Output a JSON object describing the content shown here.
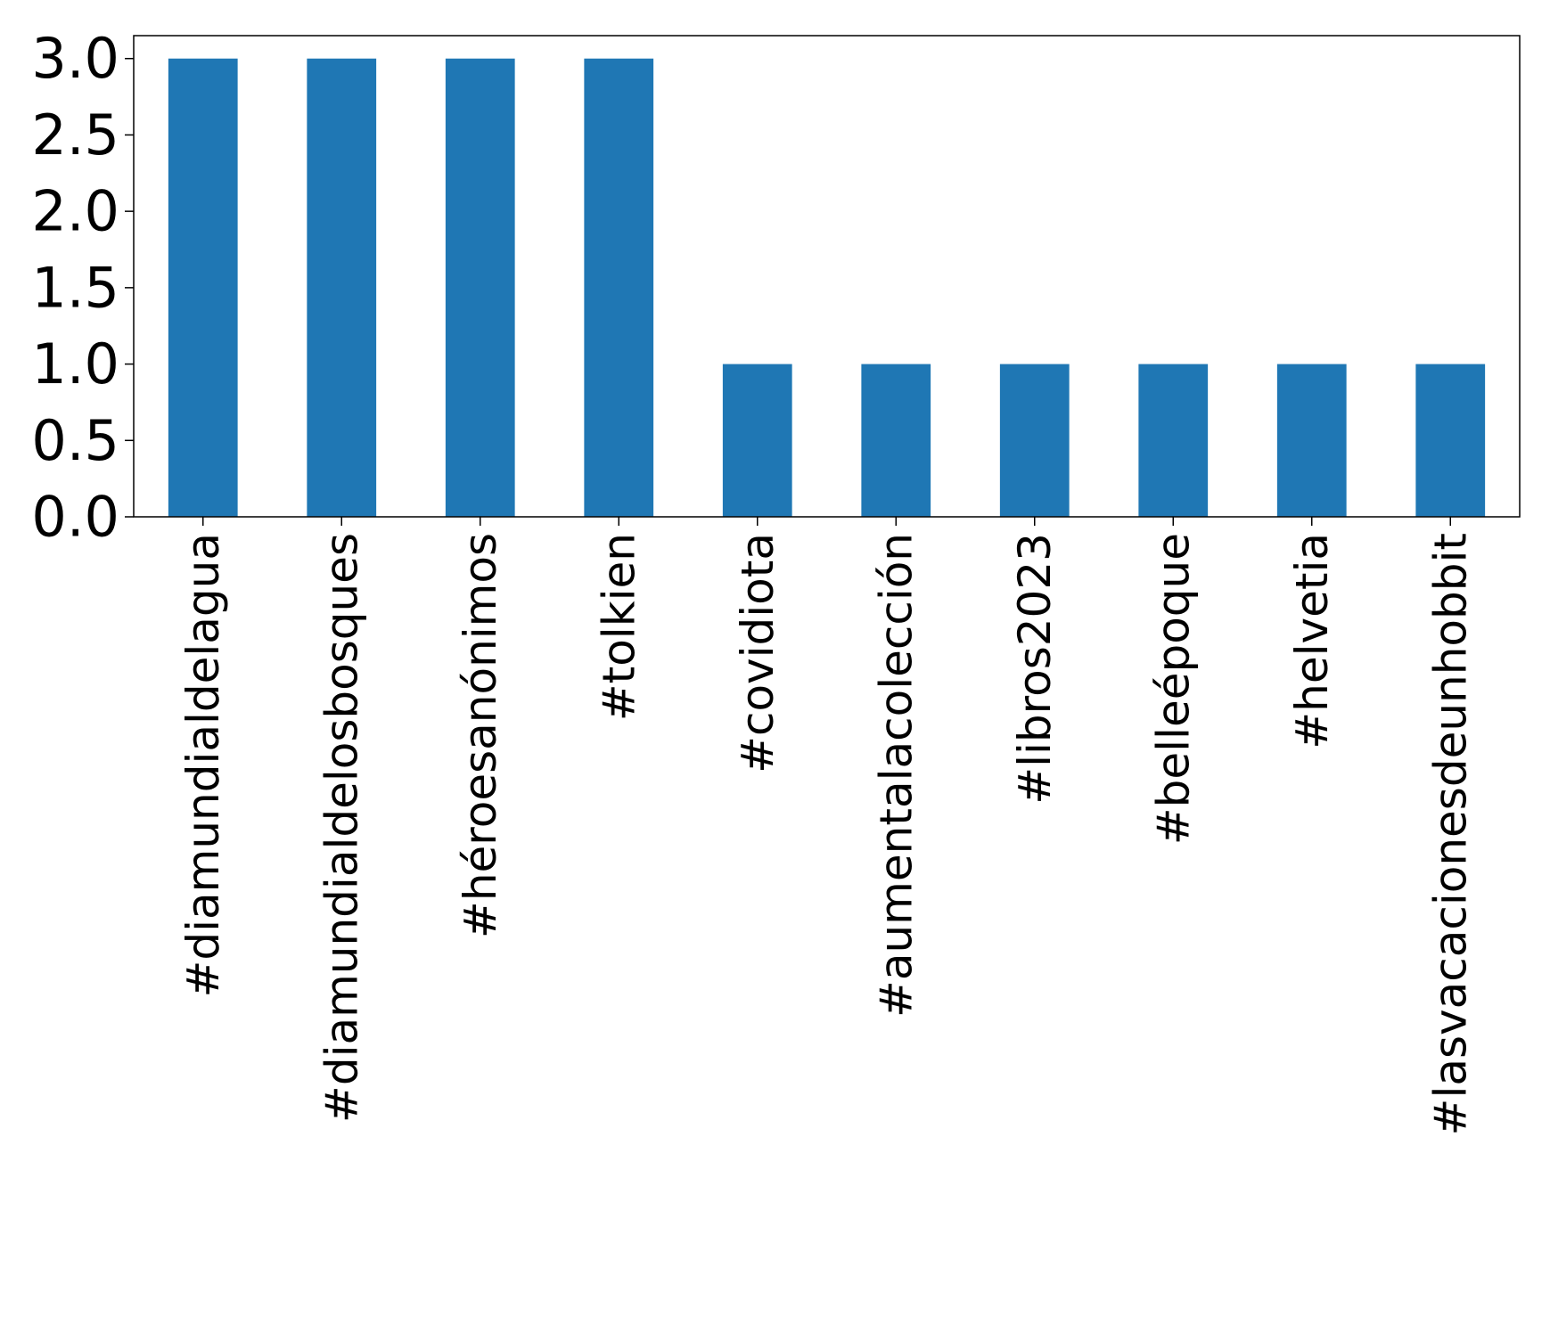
{
  "chart_data": {
    "type": "bar",
    "categories": [
      "#diamundialdelagua",
      "#diamundialdelosbosques",
      "#héroesanónimos",
      "#tolkien",
      "#covidiota",
      "#aumentalacolección",
      "#libros2023",
      "#belleépoque",
      "#helvetia",
      "#lasvacacionesdeunhobbit"
    ],
    "values": [
      3,
      3,
      3,
      3,
      1,
      1,
      1,
      1,
      1,
      1
    ],
    "title": "",
    "xlabel": "",
    "ylabel": "",
    "ylim": [
      0,
      3.15
    ],
    "yticks": [
      "0.0",
      "0.5",
      "1.0",
      "1.5",
      "2.0",
      "2.5",
      "3.0"
    ],
    "bar_color": "#1f77b4",
    "grid": false,
    "legend": "none"
  }
}
